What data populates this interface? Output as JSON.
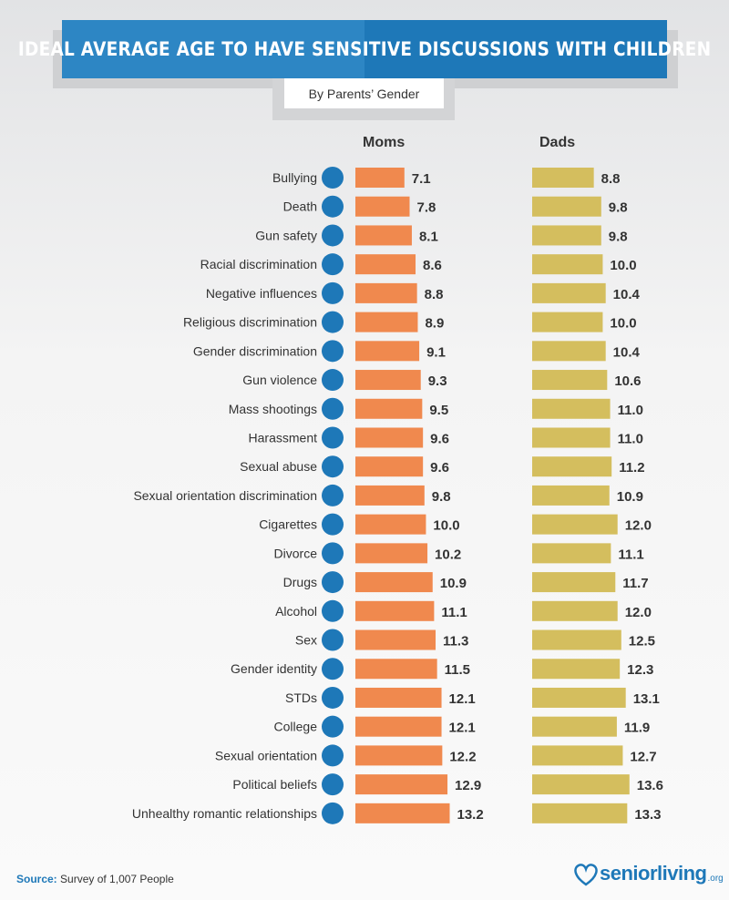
{
  "header": {
    "title": "Ideal Average Age to Have Sensitive Discussions with Children",
    "subtitle": "By Parents’ Gender"
  },
  "footer": {
    "source_label": "Source:",
    "source_text": "Survey of 1,007 People",
    "logo_text": "seniorliving",
    "logo_suffix": ".org"
  },
  "colors": {
    "moms": "#f0894e",
    "dads": "#d4be5e",
    "icon": "#1e78b8",
    "banner": "#2d86c4"
  },
  "chart_data": {
    "type": "bar",
    "orientation": "horizontal",
    "categories": [
      "Bullying",
      "Death",
      "Gun safety",
      "Racial discrimination",
      "Negative influences",
      "Religious discrimination",
      "Gender discrimination",
      "Gun violence",
      "Mass shootings",
      "Harassment",
      "Sexual abuse",
      "Sexual orientation discrimination",
      "Cigarettes",
      "Divorce",
      "Drugs",
      "Alcohol",
      "Sex",
      "Gender identity",
      "STDs",
      "College",
      "Sexual orientation",
      "Political beliefs",
      "Unhealthy romantic relationships"
    ],
    "category_icons": [
      "bullying-icon",
      "tombstone-icon",
      "gun-icon",
      "people-icon",
      "thumbs-down-icon",
      "bible-icon",
      "gender-symbol-icon",
      "gun-icon",
      "rifle-icon",
      "head-icon",
      "hand-icon",
      "gender-symbol-icon",
      "cigarette-icon",
      "broken-heart-icon",
      "pill-icon",
      "beer-icon",
      "condom-icon",
      "female-symbol-icon",
      "no-bug-icon",
      "graduation-cap-icon",
      "gender-symbol-icon",
      "ballot-box-icon",
      "broken-heart-icon"
    ],
    "series": [
      {
        "name": "Moms",
        "values": [
          7.1,
          7.8,
          8.1,
          8.6,
          8.8,
          8.9,
          9.1,
          9.3,
          9.5,
          9.6,
          9.6,
          9.8,
          10.0,
          10.2,
          10.9,
          11.1,
          11.3,
          11.5,
          12.1,
          12.1,
          12.2,
          12.9,
          13.2
        ],
        "labels": [
          "7.1",
          "7.8",
          "8.1",
          "8.6",
          "8.8",
          "8.9",
          "9.1",
          "9.3",
          "9.5",
          "9.6",
          "9.6",
          "9.8",
          "10.0",
          "10.2",
          "10.9",
          "11.1",
          "11.3",
          "11.5",
          "12.1",
          "12.1",
          "12.2",
          "12.9",
          "13.2"
        ]
      },
      {
        "name": "Dads",
        "values": [
          8.8,
          9.8,
          9.8,
          10.0,
          10.4,
          10.0,
          10.4,
          10.6,
          11.0,
          11.0,
          11.2,
          10.9,
          12.0,
          11.1,
          11.7,
          12.0,
          12.5,
          12.3,
          13.1,
          11.9,
          12.7,
          13.6,
          13.3
        ],
        "labels": [
          "8.8",
          "9.8",
          "9.8",
          "10.0",
          "10.4",
          "10.0",
          "10.4",
          "10.6",
          "11.0",
          "11.0",
          "11.2",
          "10.9",
          "12.0",
          "11.1",
          "11.7",
          "12.0",
          "12.5",
          "12.3",
          "13.1",
          "11.9",
          "12.7",
          "13.6",
          "13.3"
        ]
      }
    ]
  }
}
